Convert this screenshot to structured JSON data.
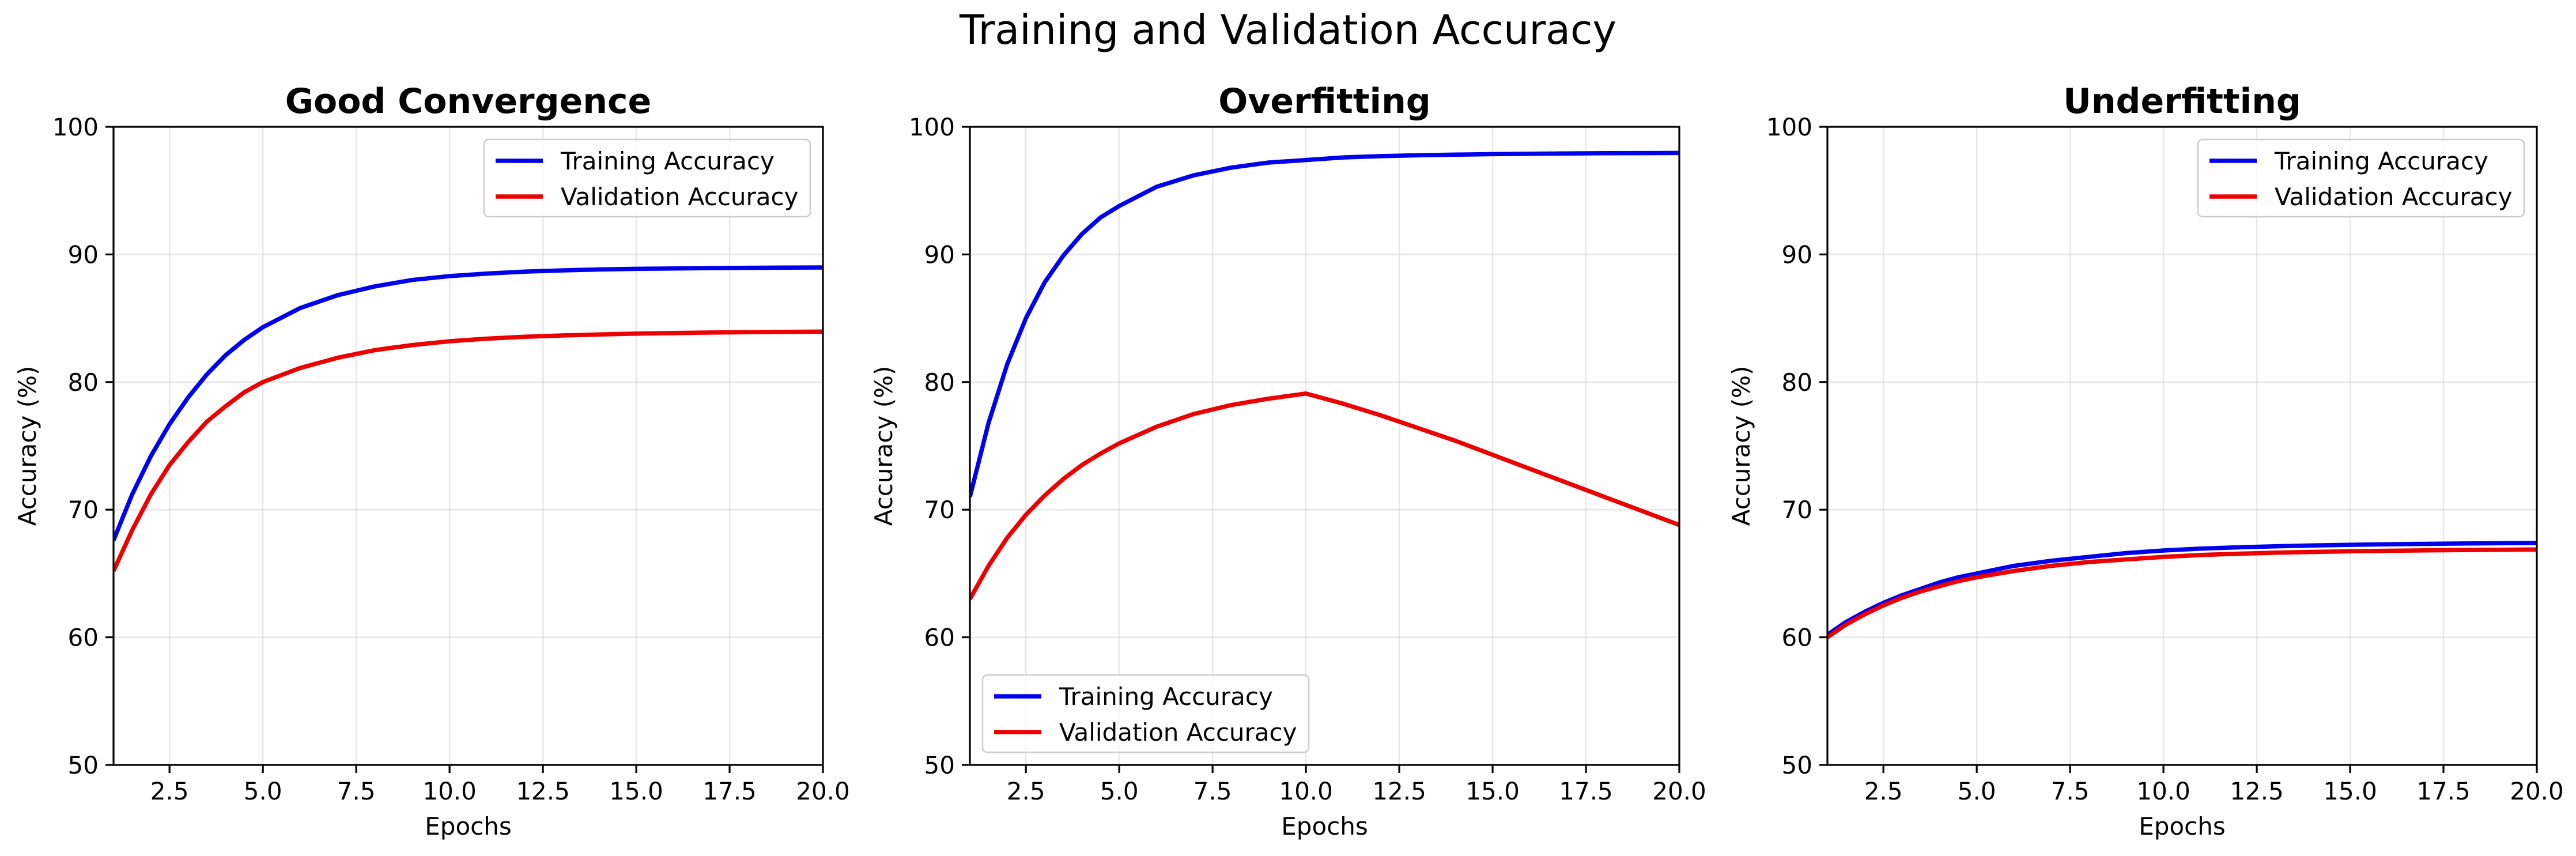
{
  "figure": {
    "title": "Training and Validation Accuracy"
  },
  "chart_data": [
    {
      "type": "line",
      "title": "Good Convergence",
      "xlabel": "Epochs",
      "ylabel": "Accuracy (%)",
      "xlim": [
        1,
        20
      ],
      "ylim": [
        50,
        100
      ],
      "xticks": [
        2.5,
        5.0,
        7.5,
        10.0,
        12.5,
        15.0,
        17.5,
        20.0
      ],
      "xtick_labels": [
        "2.5",
        "5.0",
        "7.5",
        "10.0",
        "12.5",
        "15.0",
        "17.5",
        "20.0"
      ],
      "yticks": [
        50,
        60,
        70,
        80,
        90,
        100
      ],
      "ytick_labels": [
        "50",
        "60",
        "70",
        "80",
        "90",
        "100"
      ],
      "grid": true,
      "legend": "top-right",
      "series": [
        {
          "name": "Training Accuracy",
          "color": "#0000ee",
          "x": [
            1,
            1.5,
            2,
            2.5,
            3,
            3.5,
            4,
            4.5,
            5,
            6,
            7,
            8,
            9,
            10,
            11,
            12,
            13,
            14,
            15,
            16,
            17,
            18,
            19,
            20
          ],
          "y": [
            67.6,
            71.2,
            74.2,
            76.7,
            78.8,
            80.6,
            82.1,
            83.3,
            84.3,
            85.8,
            86.8,
            87.5,
            88.0,
            88.3,
            88.5,
            88.65,
            88.75,
            88.82,
            88.87,
            88.9,
            88.93,
            88.95,
            88.97,
            88.98
          ]
        },
        {
          "name": "Validation Accuracy",
          "color": "#ee0000",
          "x": [
            1,
            1.5,
            2,
            2.5,
            3,
            3.5,
            4,
            4.5,
            5,
            6,
            7,
            8,
            9,
            10,
            11,
            12,
            13,
            14,
            15,
            16,
            17,
            18,
            19,
            20
          ],
          "y": [
            65.2,
            68.4,
            71.2,
            73.5,
            75.3,
            76.9,
            78.1,
            79.2,
            80.0,
            81.1,
            81.9,
            82.5,
            82.9,
            83.2,
            83.4,
            83.55,
            83.65,
            83.73,
            83.8,
            83.84,
            83.88,
            83.91,
            83.93,
            83.95
          ]
        }
      ]
    },
    {
      "type": "line",
      "title": "Overfitting",
      "xlabel": "Epochs",
      "ylabel": "Accuracy (%)",
      "xlim": [
        1,
        20
      ],
      "ylim": [
        50,
        100
      ],
      "xticks": [
        2.5,
        5.0,
        7.5,
        10.0,
        12.5,
        15.0,
        17.5,
        20.0
      ],
      "xtick_labels": [
        "2.5",
        "5.0",
        "7.5",
        "10.0",
        "12.5",
        "15.0",
        "17.5",
        "20.0"
      ],
      "yticks": [
        50,
        60,
        70,
        80,
        90,
        100
      ],
      "ytick_labels": [
        "50",
        "60",
        "70",
        "80",
        "90",
        "100"
      ],
      "grid": true,
      "legend": "bottom-left",
      "series": [
        {
          "name": "Training Accuracy",
          "color": "#0000ee",
          "x": [
            1,
            1.5,
            2,
            2.5,
            3,
            3.5,
            4,
            4.5,
            5,
            6,
            7,
            8,
            9,
            10,
            11,
            12,
            13,
            14,
            15,
            16,
            17,
            18,
            19,
            20
          ],
          "y": [
            71.0,
            76.8,
            81.4,
            85.0,
            87.8,
            89.9,
            91.6,
            92.9,
            93.8,
            95.3,
            96.2,
            96.8,
            97.2,
            97.4,
            97.6,
            97.7,
            97.77,
            97.82,
            97.86,
            97.89,
            97.91,
            97.93,
            97.94,
            97.95
          ]
        },
        {
          "name": "Validation Accuracy",
          "color": "#ee0000",
          "x": [
            1,
            1.5,
            2,
            2.5,
            3,
            3.5,
            4,
            4.5,
            5,
            6,
            7,
            8,
            9,
            10,
            11,
            12,
            13,
            14,
            15,
            16,
            17,
            18,
            19,
            20
          ],
          "y": [
            63.0,
            65.6,
            67.8,
            69.6,
            71.1,
            72.4,
            73.5,
            74.4,
            75.2,
            76.5,
            77.5,
            78.2,
            78.7,
            79.1,
            78.3,
            77.4,
            76.4,
            75.4,
            74.3,
            73.2,
            72.1,
            71.0,
            69.9,
            68.8
          ]
        }
      ]
    },
    {
      "type": "line",
      "title": "Underfitting",
      "xlabel": "Epochs",
      "ylabel": "Accuracy (%)",
      "xlim": [
        1,
        20
      ],
      "ylim": [
        50,
        100
      ],
      "xticks": [
        2.5,
        5.0,
        7.5,
        10.0,
        12.5,
        15.0,
        17.5,
        20.0
      ],
      "xtick_labels": [
        "2.5",
        "5.0",
        "7.5",
        "10.0",
        "12.5",
        "15.0",
        "17.5",
        "20.0"
      ],
      "yticks": [
        50,
        60,
        70,
        80,
        90,
        100
      ],
      "ytick_labels": [
        "50",
        "60",
        "70",
        "80",
        "90",
        "100"
      ],
      "grid": true,
      "legend": "top-right",
      "series": [
        {
          "name": "Training Accuracy",
          "color": "#0000ee",
          "x": [
            1,
            1.5,
            2,
            2.5,
            3,
            3.5,
            4,
            4.5,
            5,
            6,
            7,
            8,
            9,
            10,
            11,
            12,
            13,
            14,
            15,
            16,
            17,
            18,
            19,
            20
          ],
          "y": [
            60.2,
            61.2,
            62.0,
            62.7,
            63.3,
            63.8,
            64.3,
            64.7,
            65.0,
            65.6,
            66.0,
            66.3,
            66.6,
            66.8,
            66.95,
            67.05,
            67.13,
            67.2,
            67.25,
            67.29,
            67.32,
            67.35,
            67.37,
            67.39
          ]
        },
        {
          "name": "Validation Accuracy",
          "color": "#ee0000",
          "x": [
            1,
            1.5,
            2,
            2.5,
            3,
            3.5,
            4,
            4.5,
            5,
            6,
            7,
            8,
            9,
            10,
            11,
            12,
            13,
            14,
            15,
            16,
            17,
            18,
            19,
            20
          ],
          "y": [
            60.0,
            61.0,
            61.8,
            62.5,
            63.1,
            63.6,
            64.0,
            64.4,
            64.7,
            65.2,
            65.6,
            65.9,
            66.1,
            66.3,
            66.45,
            66.55,
            66.63,
            66.69,
            66.74,
            66.78,
            66.81,
            66.84,
            66.86,
            66.88
          ]
        }
      ]
    }
  ]
}
